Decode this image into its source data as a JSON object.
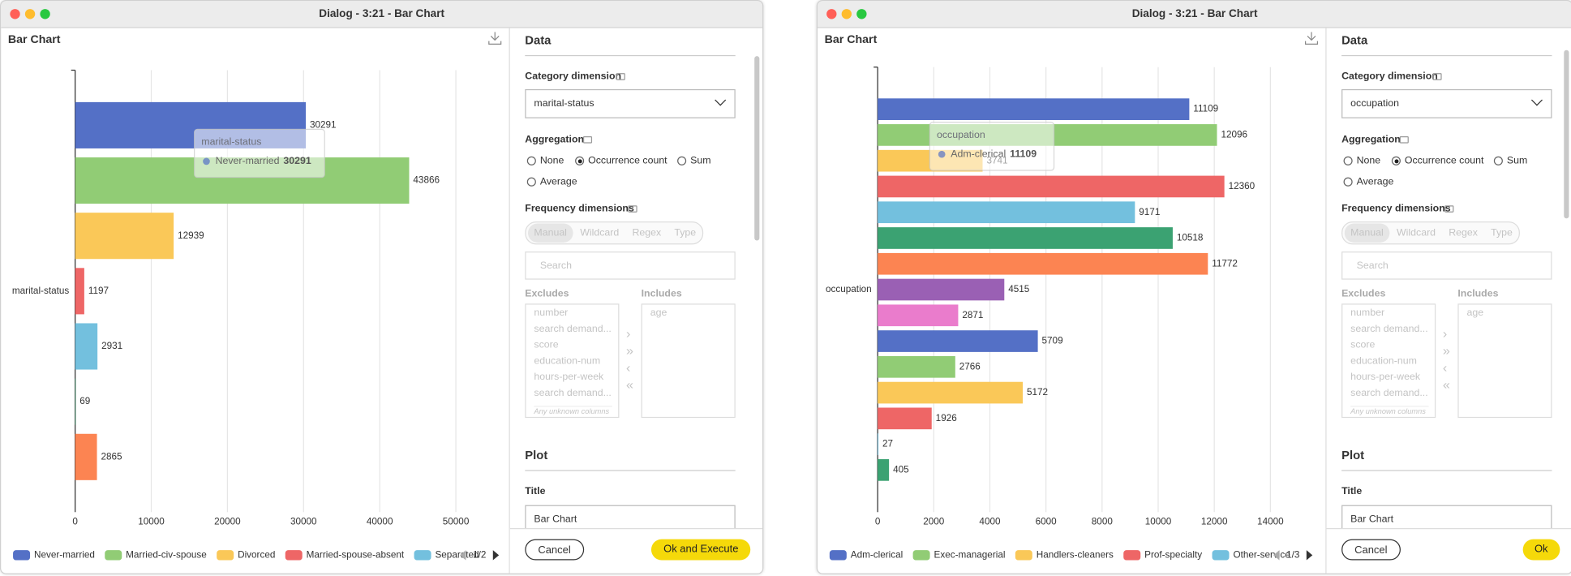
{
  "dialogs": [
    {
      "window_title": "Dialog - 3:21 - Bar Chart",
      "panel": {
        "section": "Data",
        "category_label": "Category dimension",
        "category_value": "marital-status",
        "aggregation_label": "Aggregation",
        "aggregation_options": [
          "None",
          "Occurrence count",
          "Sum",
          "Average"
        ],
        "aggregation_selected": 1,
        "frequency_label": "Frequency dimensions",
        "modes": [
          "Manual",
          "Wildcard",
          "Regex",
          "Type"
        ],
        "search": "Search",
        "excludes_label": "Excludes",
        "includes_label": "Includes",
        "excludes": [
          "number",
          "search demand...",
          "score",
          "education-num",
          "hours-per-week",
          "search demand..."
        ],
        "excludes_note": "Any unknown columns",
        "includes": [
          "age"
        ],
        "plot_section": "Plot",
        "title_label": "Title",
        "title_value": "Bar Chart"
      },
      "footer": {
        "cancel": "Cancel",
        "ok": "Ok and Execute"
      }
    },
    {
      "window_title": "Dialog - 3:21 - Bar Chart",
      "panel": {
        "section": "Data",
        "category_label": "Category dimension",
        "category_value": "occupation",
        "aggregation_label": "Aggregation",
        "aggregation_options": [
          "None",
          "Occurrence count",
          "Sum",
          "Average"
        ],
        "aggregation_selected": 1,
        "frequency_label": "Frequency dimensions",
        "modes": [
          "Manual",
          "Wildcard",
          "Regex",
          "Type"
        ],
        "search": "Search",
        "excludes_label": "Excludes",
        "includes_label": "Includes",
        "excludes": [
          "number",
          "search demand...",
          "score",
          "education-num",
          "hours-per-week",
          "search demand..."
        ],
        "excludes_note": "Any unknown columns",
        "includes": [
          "age"
        ],
        "plot_section": "Plot",
        "title_label": "Title",
        "title_value": "Bar Chart"
      },
      "footer": {
        "cancel": "Cancel",
        "ok": "Ok"
      }
    }
  ],
  "chart_data": [
    {
      "type": "bar",
      "orientation": "horizontal",
      "title": "Bar Chart",
      "y_label": "marital-status",
      "categories": [
        "Never-married",
        "Married-civ-spouse",
        "Divorced",
        "Married-spouse-absent",
        "Separated",
        null,
        null
      ],
      "values": [
        30291,
        43866,
        12939,
        1197,
        2931,
        69,
        2865
      ],
      "colors": [
        "#5470c6",
        "#91cc75",
        "#fac858",
        "#ee6666",
        "#73c0de",
        "#3ba272",
        "#fc8452"
      ],
      "xlim": [
        0,
        50000
      ],
      "xticks": [
        0,
        10000,
        20000,
        30000,
        40000,
        50000
      ],
      "grid": true,
      "legend_page": "1/2",
      "tooltip": {
        "title": "marital-status",
        "name": "Never-married",
        "value": 30291
      }
    },
    {
      "type": "bar",
      "orientation": "horizontal",
      "title": "Bar Chart",
      "y_label": "occupation",
      "categories": [
        "Adm-clerical",
        "Exec-managerial",
        "Handlers-cleaners",
        "Prof-specialty",
        "Other-service",
        null,
        null,
        null,
        null,
        null,
        null,
        null,
        null,
        null,
        null
      ],
      "values": [
        11109,
        12096,
        3741,
        12360,
        9171,
        10518,
        11772,
        4515,
        2871,
        5709,
        2766,
        5172,
        1926,
        27,
        405
      ],
      "colors": [
        "#5470c6",
        "#91cc75",
        "#fac858",
        "#ee6666",
        "#73c0de",
        "#3ba272",
        "#fc8452",
        "#9a60b4",
        "#ea7ccc",
        "#5470c6",
        "#91cc75",
        "#fac858",
        "#ee6666",
        "#73c0de",
        "#3ba272"
      ],
      "xlim": [
        0,
        14000
      ],
      "xticks": [
        0,
        2000,
        4000,
        6000,
        8000,
        10000,
        12000,
        14000
      ],
      "grid": true,
      "legend_page": "1/3",
      "tooltip": {
        "title": "occupation",
        "name": "Adm-clerical",
        "value": 11109
      }
    }
  ]
}
